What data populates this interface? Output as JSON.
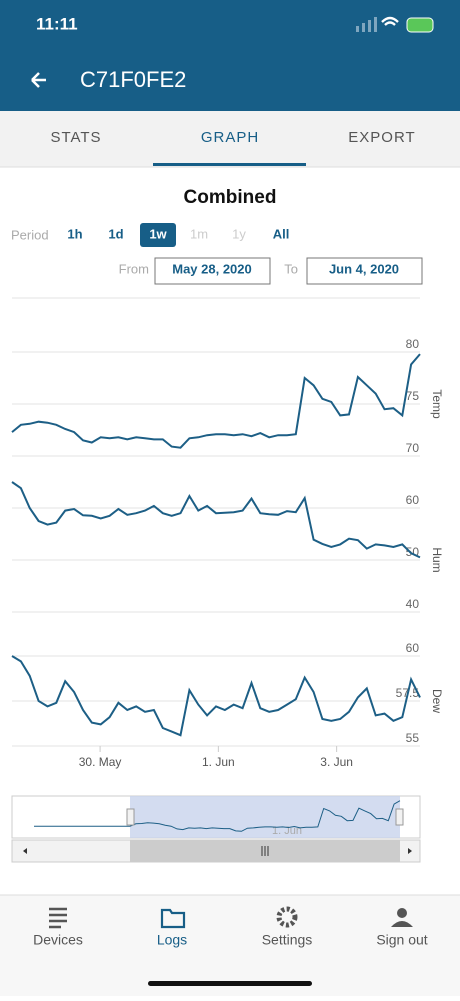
{
  "status": {
    "time": "11:11"
  },
  "header": {
    "title": "C71F0FE2"
  },
  "tabs": [
    "STATS",
    "GRAPH",
    "EXPORT"
  ],
  "graph": {
    "type": "line",
    "title": "Combined",
    "period_label": "Period",
    "periods": [
      "1h",
      "1d",
      "1w",
      "1m",
      "1y",
      "All"
    ],
    "from_label": "From",
    "from": "May 28, 2020",
    "to_label": "To",
    "to": "Jun 4, 2020",
    "x": [
      0,
      0.15,
      0.3,
      0.45,
      0.6,
      0.75,
      0.9,
      1.05,
      1.2,
      1.35,
      1.5,
      1.65,
      1.8,
      1.95,
      2.1,
      2.25,
      2.4,
      2.55,
      2.7,
      2.85,
      3,
      3.15,
      3.3,
      3.45,
      3.6,
      3.75,
      3.9,
      4.05,
      4.2,
      4.35,
      4.5,
      4.65,
      4.8,
      4.95,
      5.1,
      5.25,
      5.4,
      5.55,
      5.7,
      5.85,
      6,
      6.15,
      6.3,
      6.45,
      6.6,
      6.75,
      6.9
    ],
    "xlim": [
      0,
      6.9
    ],
    "xticks": [
      {
        "value": 1.49,
        "label": "30. May"
      },
      {
        "value": 3.49,
        "label": "1. Jun"
      },
      {
        "value": 5.49,
        "label": "3. Jun"
      }
    ],
    "panels": [
      {
        "name": "Temp",
        "ylim": [
          70,
          80
        ],
        "yticks": [
          70,
          75,
          80
        ],
        "color": "#1d5f86",
        "values": [
          72.3,
          73.0,
          73.1,
          73.3,
          73.2,
          73.0,
          72.6,
          72.3,
          71.5,
          71.3,
          71.8,
          71.7,
          71.8,
          71.6,
          71.8,
          71.7,
          71.6,
          71.6,
          70.9,
          70.8,
          71.7,
          71.8,
          72.0,
          72.1,
          72.1,
          72.0,
          72.1,
          71.9,
          72.2,
          71.8,
          72.0,
          72.0,
          72.1,
          77.5,
          76.8,
          75.5,
          75.2,
          73.9,
          74.0,
          77.6,
          76.8,
          76.0,
          74.5,
          74.6,
          73.9,
          78.8,
          79.8
        ]
      },
      {
        "name": "Hum",
        "ylim": [
          40,
          60
        ],
        "yticks": [
          40,
          50,
          60
        ],
        "color": "#1d5f86",
        "values": [
          65.0,
          63.8,
          60.0,
          57.5,
          56.8,
          57.2,
          59.5,
          59.8,
          58.6,
          58.5,
          58.0,
          58.5,
          59.8,
          58.7,
          59.0,
          59.5,
          60.4,
          59.0,
          58.5,
          59.0,
          62.3,
          59.5,
          60.4,
          59.0,
          59.1,
          59.2,
          59.5,
          61.8,
          59.0,
          58.8,
          58.7,
          59.4,
          59.2,
          61.9,
          53.9,
          53.1,
          52.5,
          53.0,
          54.1,
          53.8,
          52.2,
          53.0,
          52.8,
          52.5,
          53.0,
          51.3,
          50.5
        ]
      },
      {
        "name": "Dew",
        "ylim": [
          55,
          60
        ],
        "yticks": [
          55,
          57.5,
          60
        ],
        "color": "#1d5f86",
        "values": [
          60.0,
          59.7,
          58.9,
          57.5,
          57.2,
          57.4,
          58.6,
          58.0,
          57.0,
          56.3,
          56.2,
          56.6,
          57.4,
          57.0,
          57.2,
          56.9,
          57.0,
          56.0,
          55.8,
          55.6,
          58.1,
          57.3,
          56.7,
          57.2,
          57.0,
          57.3,
          57.1,
          58.5,
          57.1,
          56.9,
          57.0,
          57.3,
          57.6,
          58.8,
          58.0,
          56.5,
          56.4,
          56.5,
          56.9,
          57.7,
          58.2,
          56.7,
          56.8,
          56.4,
          56.6,
          58.7,
          57.7
        ]
      }
    ]
  },
  "nav": [
    "Devices",
    "Logs",
    "Settings",
    "Sign out"
  ]
}
